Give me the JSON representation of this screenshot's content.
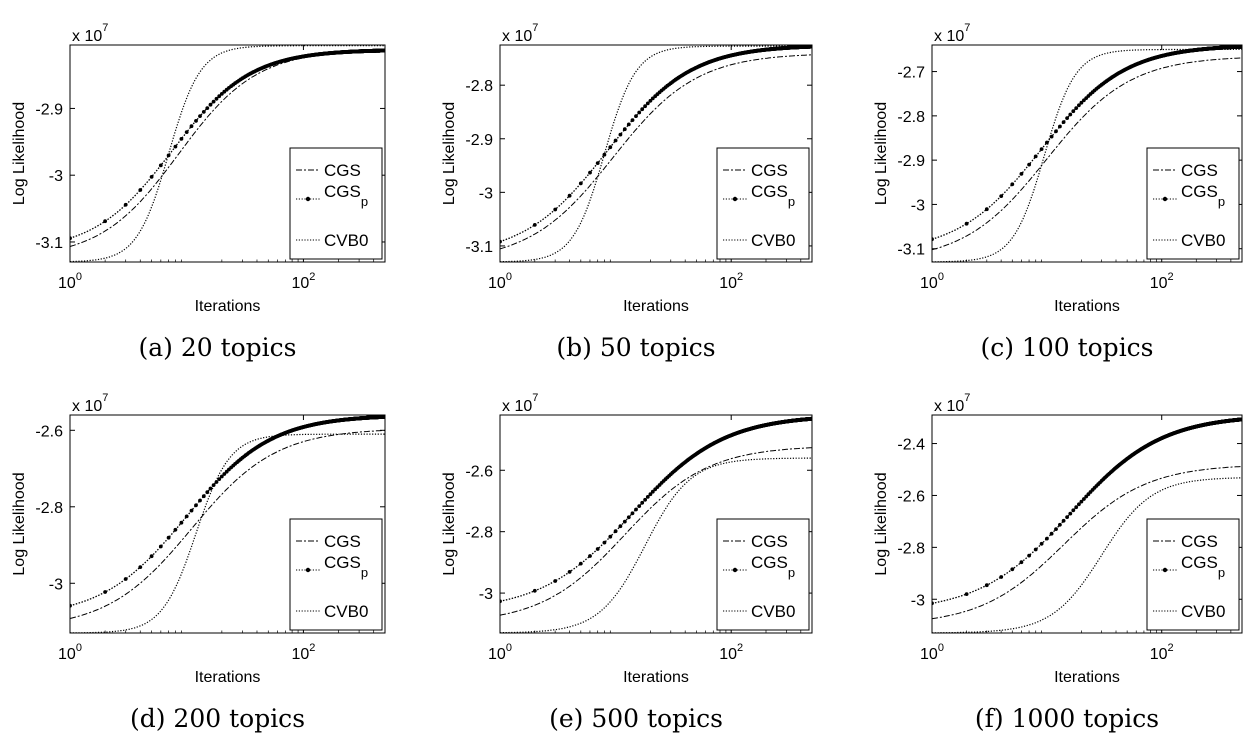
{
  "chart_data": [
    {
      "type": "line",
      "caption": "(a) 20 topics",
      "xlabel": "Iterations",
      "ylabel": "Log Likelihood",
      "y_multiplier": "x 10",
      "y_exponent": "7",
      "xscale": "log",
      "xlim": [
        1,
        500
      ],
      "ylim": [
        -3.13,
        -2.805
      ],
      "xticks": [
        1,
        100
      ],
      "xtick_labels": [
        "10",
        "10"
      ],
      "xtick_exponents": [
        "0",
        "2"
      ],
      "yticks": [
        -3.1,
        -3.0,
        -2.9
      ],
      "ytick_labels": [
        "-3.1",
        "-3",
        "-2.9"
      ],
      "legend": [
        "CGS",
        "CGSp",
        "CVB0"
      ],
      "legend_base": "CGS",
      "legend_sub": "p",
      "legend_position": "right",
      "series": [
        {
          "name": "CGS",
          "style": "dashdot",
          "start": -3.125,
          "end": -2.812,
          "mid": 8.5,
          "k": 1.3
        },
        {
          "name": "CGSp",
          "style": "dotted-markers",
          "start": -3.115,
          "end": -2.812,
          "mid": 7.5,
          "k": 1.3
        },
        {
          "name": "CVB0",
          "style": "dotted",
          "start": -3.13,
          "end": -2.806,
          "mid": 7.0,
          "k": 3.2
        }
      ]
    },
    {
      "type": "line",
      "caption": "(b) 50 topics",
      "xlabel": "Iterations",
      "ylabel": "Log Likelihood",
      "y_multiplier": "x 10",
      "y_exponent": "7",
      "xscale": "log",
      "xlim": [
        1,
        500
      ],
      "ylim": [
        -3.13,
        -2.725
      ],
      "xticks": [
        1,
        100
      ],
      "xtick_labels": [
        "10",
        "10"
      ],
      "xtick_exponents": [
        "0",
        "2"
      ],
      "yticks": [
        -3.1,
        -3.0,
        -2.9,
        -2.8
      ],
      "ytick_labels": [
        "-3.1",
        "-3",
        "-2.9",
        "-2.8"
      ],
      "legend": [
        "CGS",
        "CGSp",
        "CVB0"
      ],
      "legend_base": "CGS",
      "legend_sub": "p",
      "legend_position": "right",
      "series": [
        {
          "name": "CGS",
          "style": "dashdot",
          "start": -3.13,
          "end": -2.74,
          "mid": 9.5,
          "k": 1.2
        },
        {
          "name": "CGSp",
          "style": "dotted-markers",
          "start": -3.12,
          "end": -2.725,
          "mid": 8.5,
          "k": 1.2
        },
        {
          "name": "CVB0",
          "style": "dotted",
          "start": -3.13,
          "end": -2.727,
          "mid": 8.0,
          "k": 3.2
        }
      ]
    },
    {
      "type": "line",
      "caption": "(c) 100 topics",
      "xlabel": "Iterations",
      "ylabel": "Log Likelihood",
      "y_multiplier": "x 10",
      "y_exponent": "7",
      "xscale": "log",
      "xlim": [
        1,
        500
      ],
      "ylim": [
        -3.13,
        -2.64
      ],
      "xticks": [
        1,
        100
      ],
      "xtick_labels": [
        "10",
        "10"
      ],
      "xtick_exponents": [
        "0",
        "2"
      ],
      "yticks": [
        -3.1,
        -3.0,
        -2.9,
        -2.8,
        -2.7
      ],
      "ytick_labels": [
        "-3.1",
        "-3",
        "-2.9",
        "-2.8",
        "-2.7"
      ],
      "legend": [
        "CGS",
        "CGSp",
        "CVB0"
      ],
      "legend_base": "CGS",
      "legend_sub": "p",
      "legend_position": "right",
      "series": [
        {
          "name": "CGS",
          "style": "dashdot",
          "start": -3.13,
          "end": -2.665,
          "mid": 10,
          "k": 1.2
        },
        {
          "name": "CGSp",
          "style": "dotted-markers",
          "start": -3.11,
          "end": -2.64,
          "mid": 9,
          "k": 1.2
        },
        {
          "name": "CVB0",
          "style": "dotted",
          "start": -3.13,
          "end": -2.65,
          "mid": 9.5,
          "k": 3.2
        }
      ]
    },
    {
      "type": "line",
      "caption": "(d) 200 topics",
      "xlabel": "Iterations",
      "ylabel": "Log Likelihood",
      "y_multiplier": "x 10",
      "y_exponent": "7",
      "xscale": "log",
      "xlim": [
        1,
        500
      ],
      "ylim": [
        -3.13,
        -2.56
      ],
      "xticks": [
        1,
        100
      ],
      "xtick_labels": [
        "10",
        "10"
      ],
      "xtick_exponents": [
        "0",
        "2"
      ],
      "yticks": [
        -3.0,
        -2.8,
        -2.6
      ],
      "ytick_labels": [
        "-3",
        "-2.8",
        "-2.6"
      ],
      "legend": [
        "CGS",
        "CGSp",
        "CVB0"
      ],
      "legend_base": "CGS",
      "legend_sub": "p",
      "legend_position": "right",
      "series": [
        {
          "name": "CGS",
          "style": "dashdot",
          "start": -3.12,
          "end": -2.595,
          "mid": 11,
          "k": 1.2
        },
        {
          "name": "CGSp",
          "style": "dotted-markers",
          "start": -3.09,
          "end": -2.56,
          "mid": 10,
          "k": 1.2
        },
        {
          "name": "CVB0",
          "style": "dotted",
          "start": -3.13,
          "end": -2.61,
          "mid": 12,
          "k": 3.0
        }
      ]
    },
    {
      "type": "line",
      "caption": "(e) 500 topics",
      "xlabel": "Iterations",
      "ylabel": "Log Likelihood",
      "y_multiplier": "x 10",
      "y_exponent": "7",
      "xscale": "log",
      "xlim": [
        1,
        500
      ],
      "ylim": [
        -3.13,
        -2.42
      ],
      "xticks": [
        1,
        100
      ],
      "xtick_labels": [
        "10",
        "10"
      ],
      "xtick_exponents": [
        "0",
        "2"
      ],
      "yticks": [
        -3.0,
        -2.8,
        -2.6
      ],
      "ytick_labels": [
        "-3",
        "-2.8",
        "-2.6"
      ],
      "legend": [
        "CGS",
        "CGSp",
        "CVB0"
      ],
      "legend_base": "CGS",
      "legend_sub": "p",
      "legend_position": "right",
      "series": [
        {
          "name": "CGS",
          "style": "dashdot",
          "start": -3.1,
          "end": -2.52,
          "mid": 12,
          "k": 1.2
        },
        {
          "name": "CGSp",
          "style": "dotted-markers",
          "start": -3.06,
          "end": -2.42,
          "mid": 14,
          "k": 1.1
        },
        {
          "name": "CVB0",
          "style": "dotted",
          "start": -3.13,
          "end": -2.56,
          "mid": 18,
          "k": 2.2
        }
      ]
    },
    {
      "type": "line",
      "caption": "(f) 1000 topics",
      "xlabel": "Iterations",
      "ylabel": "Log Likelihood",
      "y_multiplier": "x 10",
      "y_exponent": "7",
      "xscale": "log",
      "xlim": [
        1,
        500
      ],
      "ylim": [
        -3.13,
        -2.29
      ],
      "xticks": [
        1,
        100
      ],
      "xtick_labels": [
        "10",
        "10"
      ],
      "xtick_exponents": [
        "0",
        "2"
      ],
      "yticks": [
        -3.0,
        -2.8,
        -2.6,
        -2.4
      ],
      "ytick_labels": [
        "-3",
        "-2.8",
        "-2.6",
        "-2.4"
      ],
      "legend": [
        "CGS",
        "CGSp",
        "CVB0"
      ],
      "legend_base": "CGS",
      "legend_sub": "p",
      "legend_position": "right",
      "series": [
        {
          "name": "CGS",
          "style": "dashdot",
          "start": -3.1,
          "end": -2.48,
          "mid": 14,
          "k": 1.2
        },
        {
          "name": "CGSp",
          "style": "dotted-markers",
          "start": -3.05,
          "end": -2.29,
          "mid": 16,
          "k": 1.1
        },
        {
          "name": "CVB0",
          "style": "dotted",
          "start": -3.13,
          "end": -2.53,
          "mid": 30,
          "k": 2.0
        }
      ]
    }
  ]
}
